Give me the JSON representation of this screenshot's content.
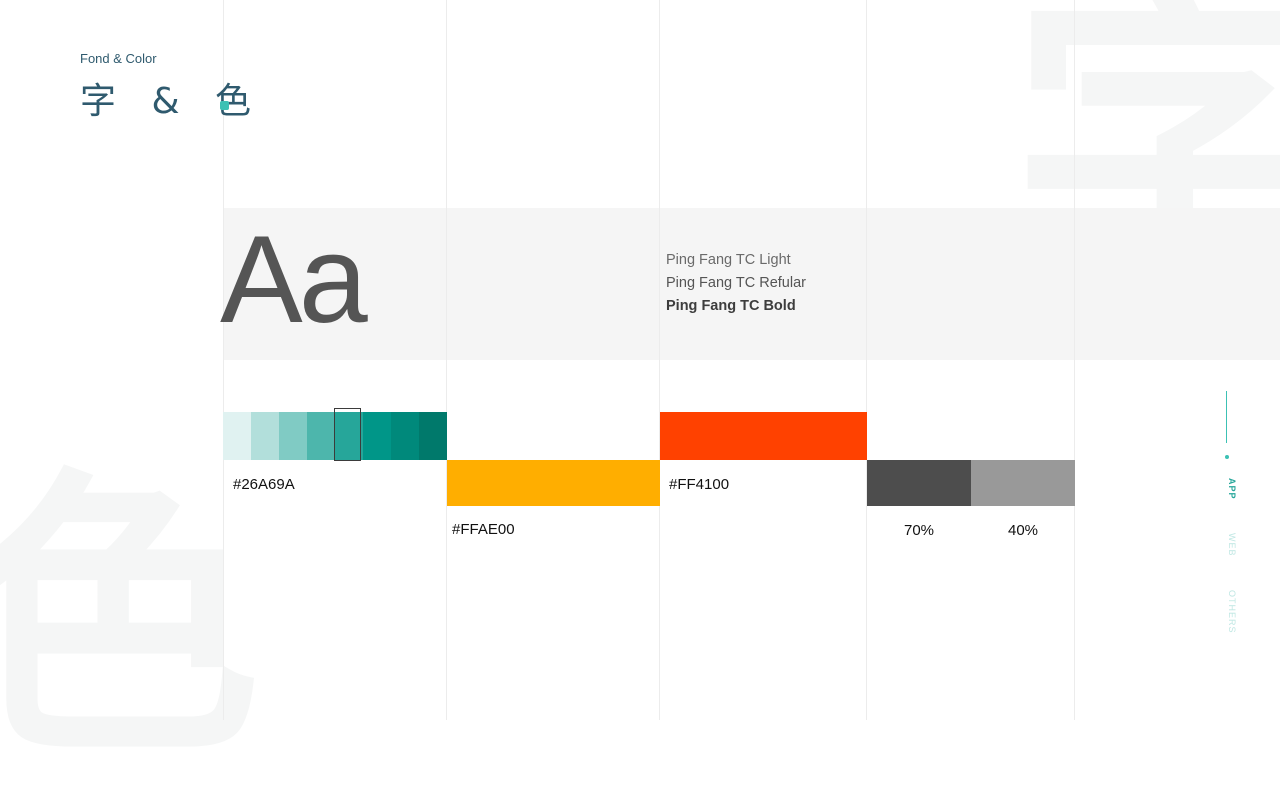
{
  "watermark": {
    "top_char": "字",
    "bottom_char": "色"
  },
  "header": {
    "subtitle": "Fond & Color",
    "title": "字 & 色"
  },
  "typography": {
    "sample": "Aa",
    "weights": [
      "Ping Fang TC Light",
      "Ping Fang TC Refular",
      "Ping Fang TC Bold"
    ]
  },
  "palette": {
    "teal_shades": [
      "#e0f2f1",
      "#b2dfdb",
      "#80cbc4",
      "#4db6ac",
      "#26a69a",
      "#009688",
      "#00897b",
      "#00796b"
    ],
    "teal_hex": "#26A69A",
    "yellow_hex": "#FFAE00",
    "red_hex": "#FF4100",
    "gray_70_color": "#4d4d4d",
    "gray_40_color": "#999999",
    "gray_70_label": "70%",
    "gray_40_label": "40%"
  },
  "colors": {
    "accent": "#3cc1b4",
    "title": "#2f5a6e"
  },
  "nav": {
    "items": [
      "APP",
      "WEB",
      "OTHERS"
    ]
  }
}
